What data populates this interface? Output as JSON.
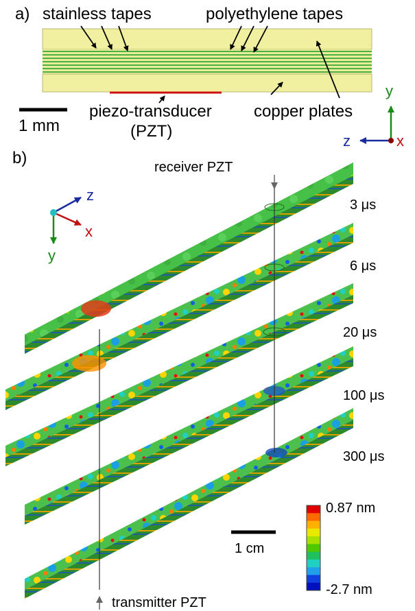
{
  "panel_a": {
    "label": "a)",
    "stainless_label": "stainless tapes",
    "polyethylene_label": "polyethylene tapes",
    "pzt_label_line1": "piezo-transducer",
    "pzt_label_line2": "(PZT)",
    "copper_label": "copper plates",
    "scalebar_label": "1 mm",
    "axis_y": "y",
    "axis_z": "z",
    "axis_x": "x"
  },
  "panel_b": {
    "label": "b)",
    "receiver_label": "receiver PZT",
    "transmitter_label": "transmitter PZT",
    "times": [
      "3 μs",
      "6 μs",
      "20 μs",
      "100 μs",
      "300 μs"
    ],
    "axis_z": "z",
    "axis_x": "x",
    "axis_y": "y",
    "scalebar_label": "1 cm",
    "colorbar_max": "0.87 nm",
    "colorbar_min": "-2.7 nm"
  },
  "colors": {
    "copper_plate": "#f0f0a0",
    "stainless_tape": "#3aa53a",
    "pzt": "#cc1010",
    "axis_y": "#1a8a1a",
    "axis_z": "#1a2aa0",
    "axis_x": "#c01010",
    "colorbar": [
      "#e00000",
      "#ff6a00",
      "#ffb000",
      "#e8e800",
      "#a8e000",
      "#50c800",
      "#20c060",
      "#20d0c0",
      "#20a0e8",
      "#1040e0",
      "#0010c0"
    ]
  }
}
